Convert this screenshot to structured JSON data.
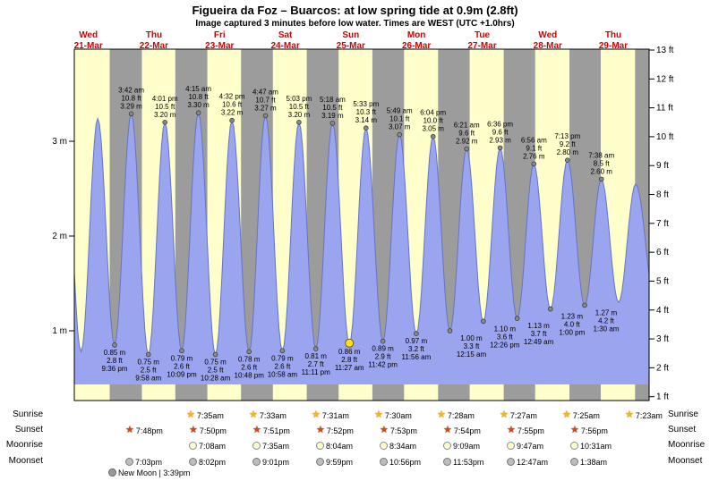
{
  "title": "Figueira da Foz – Buarcos: at low  spring tide at 0.9m (2.8ft)",
  "subtitle": "Image captured 3 minutes before low water. Times are WEST (UTC +1.0hrs)",
  "chart_data": {
    "type": "area",
    "title": "Figueira da Foz – Buarcos: at low  spring tide at 0.9m (2.8ft)",
    "subtitle": "Image captured 3 minutes before low water. Times are WEST (UTC +1.0hrs)",
    "x_days": [
      {
        "dow": "Wed",
        "date": "21-Mar"
      },
      {
        "dow": "Thu",
        "date": "22-Mar"
      },
      {
        "dow": "Fri",
        "date": "23-Mar"
      },
      {
        "dow": "Sat",
        "date": "24-Mar"
      },
      {
        "dow": "Sun",
        "date": "25-Mar"
      },
      {
        "dow": "Mon",
        "date": "26-Mar"
      },
      {
        "dow": "Tue",
        "date": "27-Mar"
      },
      {
        "dow": "Wed",
        "date": "28-Mar"
      },
      {
        "dow": "Thu",
        "date": "29-Mar"
      }
    ],
    "y_left": {
      "unit": "m",
      "ticks": [
        "1 m",
        "2 m",
        "3 m"
      ]
    },
    "y_right": {
      "unit": "ft",
      "ticks": [
        "1 ft",
        "2 ft",
        "3 ft",
        "4 ft",
        "5 ft",
        "6 ft",
        "7 ft",
        "8 ft",
        "9 ft",
        "10 ft",
        "11 ft",
        "12 ft",
        "13 ft"
      ]
    },
    "high_tides": [
      {
        "time": "3:42 am",
        "ft": "10.8 ft",
        "m": "3.29 m",
        "t": 1.154,
        "height_m": 3.29
      },
      {
        "time": "4:01 pm",
        "ft": "10.5 ft",
        "m": "3.20 m",
        "t": 1.667,
        "height_m": 3.2
      },
      {
        "time": "4:15 am",
        "ft": "10.8 ft",
        "m": "3.30 m",
        "t": 2.177,
        "height_m": 3.3
      },
      {
        "time": "4:32 pm",
        "ft": "10.6 ft",
        "m": "3.22 m",
        "t": 2.689,
        "height_m": 3.22
      },
      {
        "time": "4:47 am",
        "ft": "10.7 ft",
        "m": "3.27 m",
        "t": 3.199,
        "height_m": 3.27
      },
      {
        "time": "5:03 pm",
        "ft": "10.5 ft",
        "m": "3.20 m",
        "t": 3.71,
        "height_m": 3.2
      },
      {
        "time": "5:18 am",
        "ft": "10.5 ft",
        "m": "3.19 m",
        "t": 4.221,
        "height_m": 3.19
      },
      {
        "time": "5:33 pm",
        "ft": "10.3 ft",
        "m": "3.14 m",
        "t": 4.731,
        "height_m": 3.14
      },
      {
        "time": "5:49 am",
        "ft": "10.1 ft",
        "m": "3.07 m",
        "t": 5.242,
        "height_m": 3.07
      },
      {
        "time": "6:04 pm",
        "ft": "10.0 ft",
        "m": "3.05 m",
        "t": 5.753,
        "height_m": 3.05
      },
      {
        "time": "6:21 am",
        "ft": "9.6 ft",
        "m": "2.92 m",
        "t": 6.265,
        "height_m": 2.92
      },
      {
        "time": "6:36 pm",
        "ft": "9.6 ft",
        "m": "2.93 m",
        "t": 6.775,
        "height_m": 2.93
      },
      {
        "time": "6:56 am",
        "ft": "9.1 ft",
        "m": "2.76 m",
        "t": 7.289,
        "height_m": 2.76
      },
      {
        "time": "7:13 pm",
        "ft": "9.2 ft",
        "m": "2.80 m",
        "t": 7.801,
        "height_m": 2.8
      },
      {
        "time": "7:38 am",
        "ft": "8.5 ft",
        "m": "2.60 m",
        "t": 8.318,
        "height_m": 2.6
      }
    ],
    "low_tides": [
      {
        "m": "0.85 m",
        "ft": "2.8 ft",
        "time": "9:36 pm",
        "t": 0.9,
        "height_m": 0.85,
        "current": false
      },
      {
        "m": "0.75 m",
        "ft": "2.5 ft",
        "time": "9:58 am",
        "t": 1.415,
        "height_m": 0.75,
        "current": false
      },
      {
        "m": "0.79 m",
        "ft": "2.6 ft",
        "time": "10:09 pm",
        "t": 1.923,
        "height_m": 0.79,
        "current": false
      },
      {
        "m": "0.75 m",
        "ft": "2.5 ft",
        "time": "10:28 am",
        "t": 2.436,
        "height_m": 0.75,
        "current": false
      },
      {
        "m": "0.78 m",
        "ft": "2.6 ft",
        "time": "10:48 pm",
        "t": 2.95,
        "height_m": 0.78,
        "current": false
      },
      {
        "m": "0.79 m",
        "ft": "2.6 ft",
        "time": "10:58 am",
        "t": 3.457,
        "height_m": 0.79,
        "current": false
      },
      {
        "m": "0.81 m",
        "ft": "2.7 ft",
        "time": "11:11 pm",
        "t": 3.966,
        "height_m": 0.81,
        "current": false
      },
      {
        "m": "0.86 m",
        "ft": "2.8 ft",
        "time": "11:27 am",
        "t": 4.477,
        "height_m": 0.86,
        "current": true
      },
      {
        "m": "0.89 m",
        "ft": "2.9 ft",
        "time": "11:42 pm",
        "t": 4.988,
        "height_m": 0.89,
        "current": false
      },
      {
        "m": "0.97 m",
        "ft": "3.2 ft",
        "time": "11:56 am",
        "t": 5.497,
        "height_m": 0.97,
        "current": false
      },
      {
        "m": "1.00 m",
        "ft": "3.3 ft",
        "time": "12:15 am",
        "t": 6.01,
        "height_m": 1.0,
        "current": false
      },
      {
        "m": "1.10 m",
        "ft": "3.6 ft",
        "time": "12:26 pm",
        "t": 6.518,
        "height_m": 1.1,
        "current": false
      },
      {
        "m": "1.13 m",
        "ft": "3.7 ft",
        "time": "12:49 am",
        "t": 7.034,
        "height_m": 1.13,
        "current": false
      },
      {
        "m": "1.23 m",
        "ft": "4.0 ft",
        "time": "1:00 pm",
        "t": 7.542,
        "height_m": 1.23,
        "current": false
      },
      {
        "m": "1.27 m",
        "ft": "4.2 ft",
        "time": "1:30 am",
        "t": 8.063,
        "height_m": 1.27,
        "current": false
      }
    ],
    "night_bands_t": [
      [
        0.825,
        1.316
      ],
      [
        1.826,
        2.315
      ],
      [
        2.827,
        3.313
      ],
      [
        3.828,
        4.313
      ],
      [
        4.828,
        5.311
      ],
      [
        5.829,
        6.31
      ],
      [
        6.83,
        7.309
      ],
      [
        7.831,
        8.308
      ],
      [
        8.831,
        9.05
      ]
    ],
    "curve_padding": {
      "pre": [
        [
          0.132,
          3.2
        ],
        [
          0.389,
          0.78
        ],
        [
          0.644,
          3.24
        ]
      ],
      "post": [
        [
          8.58,
          1.3
        ],
        [
          8.84,
          2.55
        ],
        [
          9.15,
          1.25
        ]
      ]
    }
  },
  "astro": {
    "rows": [
      {
        "key": "sunrise",
        "label": "Sunrise",
        "times": [
          "7:35am",
          "7:33am",
          "7:31am",
          "7:30am",
          "7:28am",
          "7:27am",
          "7:25am",
          "7:23am"
        ]
      },
      {
        "key": "sunset",
        "label": "Sunset",
        "times": [
          "7:48pm",
          "7:50pm",
          "7:51pm",
          "7:52pm",
          "7:53pm",
          "7:54pm",
          "7:55pm",
          "7:56pm"
        ]
      },
      {
        "key": "moonrise",
        "label": "Moonrise",
        "times": [
          "7:08am",
          "7:35am",
          "8:04am",
          "8:34am",
          "9:09am",
          "9:47am",
          "10:31am"
        ]
      },
      {
        "key": "moonset",
        "label": "Moonset",
        "times": [
          "7:03pm",
          "8:02pm",
          "9:01pm",
          "9:59pm",
          "10:56pm",
          "11:53pm",
          "12:47am",
          "1:38am"
        ]
      }
    ],
    "new_moon_label": "New Moon | 3:39pm"
  },
  "colors": {
    "day_band": "#ffffcc",
    "night_band": "#9c9c9c",
    "tide_fill": "#9aa4ef",
    "tide_stroke": "#6674c4",
    "day_header": "#d40000",
    "current_marker": "#ffdf1f",
    "axis": "#000000"
  }
}
